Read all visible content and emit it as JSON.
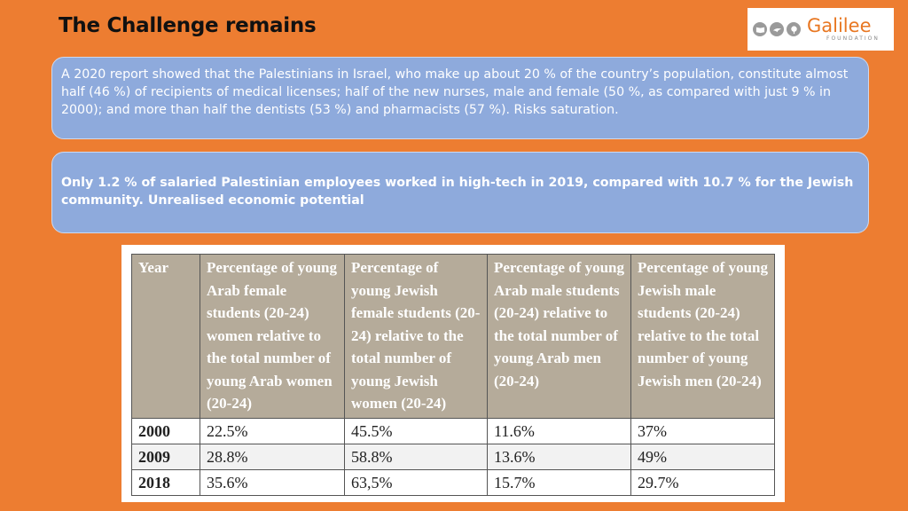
{
  "slide": {
    "title": "The Challenge remains"
  },
  "logo": {
    "brand": "Galilee",
    "sub": "FOUNDATION",
    "icons": [
      "book-icon",
      "dove-icon",
      "tree-icon"
    ]
  },
  "boxes": {
    "text1": "A 2020 report showed  that the Palestinians in Israel, who make up about 20 % of the country’s population, constitute almost half (46 %) of recipients of medical licenses; half of the new nurses, male and female (50 %, as compared with just 9 % in 2000); and more than half the dentists (53 %) and pharmacists (57 %). Risks saturation.",
    "text2": "Only 1.2 % of salaried Palestinian employees worked in high-tech in 2019, compared with 10.7 % for the Jewish community.  Unrealised  economic potential"
  },
  "table": {
    "headers": [
      "Year",
      "Percentage of young Arab female students (20-24) women relative to the total number of young Arab women (20-24)",
      "Percentage of young Jewish female students (20-24) relative to the total number of young Jewish women (20-24)",
      "Percentage of young Arab male students (20-24) relative to the total number of young Arab men (20-24)",
      "Percentage of young Jewish male students (20-24) relative to the total number of young Jewish men (20-24)"
    ],
    "rows": [
      [
        "2000",
        "22.5%",
        "45.5%",
        "11.6%",
        "37%"
      ],
      [
        "2009",
        "28.8%",
        "58.8%",
        "13.6%",
        "49%"
      ],
      [
        "2018",
        "35.6%",
        "63,5%",
        "15.7%",
        "29.7%"
      ]
    ]
  },
  "colors": {
    "background": "#ed7d31",
    "box_fill": "#8eaadc",
    "table_header": "#b5ab9a",
    "logo_brand": "#e87722"
  }
}
